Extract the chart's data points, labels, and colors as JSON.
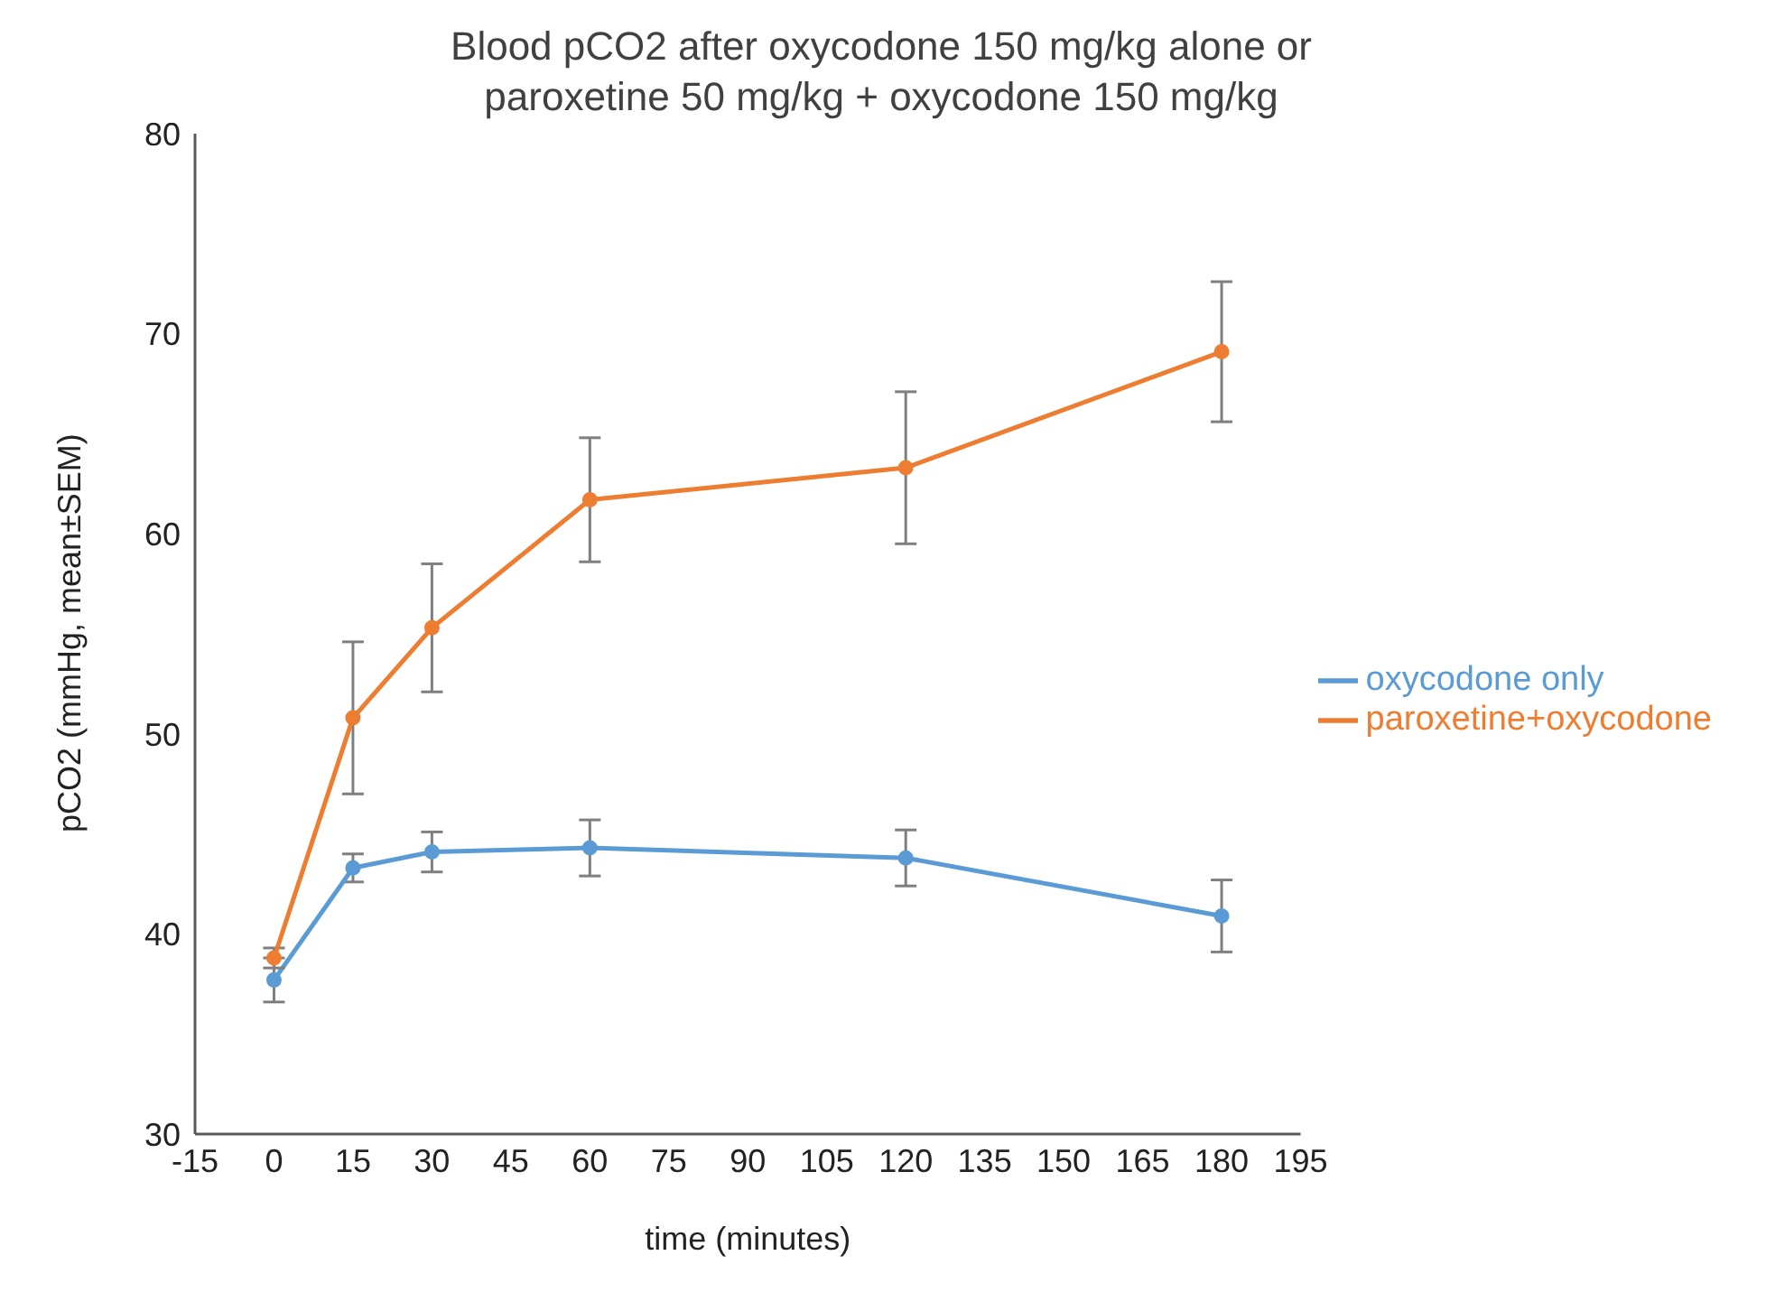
{
  "chart_data": {
    "type": "line",
    "title": "Blood pCO2 after oxycodone 150 mg/kg alone or\nparoxetine 50 mg/kg + oxycodone 150 mg/kg",
    "xlabel": "time (minutes)",
    "ylabel": "pCO2 (mmHg, mean±SEM)",
    "x": [
      0,
      15,
      30,
      60,
      120,
      180
    ],
    "series": [
      {
        "name": "oxycodone only",
        "color": "#5b9bd5",
        "values": [
          37.7,
          43.3,
          44.1,
          44.3,
          43.8,
          40.9
        ],
        "errors": [
          1.1,
          0.7,
          1.0,
          1.4,
          1.4,
          1.8
        ]
      },
      {
        "name": "paroxetine+oxycodone",
        "color": "#ed7d31",
        "values": [
          38.8,
          50.8,
          55.3,
          61.7,
          63.3,
          69.1
        ],
        "errors": [
          0.5,
          3.8,
          3.2,
          3.1,
          3.8,
          3.5
        ]
      }
    ],
    "xlim": [
      -15,
      195
    ],
    "xticks": [
      -15,
      0,
      15,
      30,
      45,
      60,
      75,
      90,
      105,
      120,
      135,
      150,
      165,
      180,
      195
    ],
    "ylim": [
      30,
      80
    ],
    "yticks": [
      30,
      40,
      50,
      60,
      70,
      80
    ],
    "grid": false,
    "legend": "right",
    "marker": "circle",
    "line_style": "solid"
  }
}
